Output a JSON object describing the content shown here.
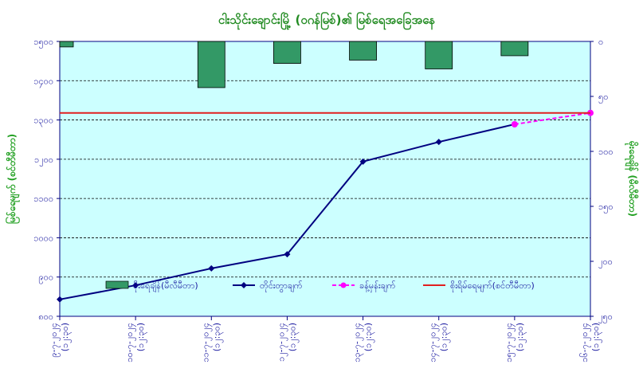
{
  "chart_data": {
    "type": "bar+line",
    "title": "ငါးသိုင်းချောင်းမြို့ (ဝဂန်မြစ်)၏ မြစ်ရေအခြေအနေ",
    "left_axis": {
      "label": "မြစ်ရေမျက် (စင်တီမီတာ)",
      "ylim": [
        800,
        1500
      ],
      "ticks": [
        800,
        900,
        1000,
        1100,
        1200,
        1300,
        1400,
        1500
      ],
      "tick_labels": [
        "၈၀၀",
        "၉၀၀",
        "၁၀၀၀",
        "၁၁၀၀",
        "၁၂၀၀",
        "၁၃၀၀",
        "၁၄၀၀",
        "၁၅၀၀"
      ]
    },
    "right_axis": {
      "label": "မိုးရေချိန် (မီလီမီတာ)",
      "ylim": [
        0,
        250
      ],
      "inverted": true,
      "ticks": [
        0,
        50,
        100,
        150,
        200,
        250
      ],
      "tick_labels": [
        "၀",
        "၅၀",
        "၁၀၀",
        "၁၅၀",
        "၂၀၀",
        "၂၅၀"
      ]
    },
    "categories": [
      "၉-၇-၂၀၂၄\n(၁၂:၃၀)",
      "၁၀-၇-၂၀၂၄\n(၁၂:၃၀)",
      "၁၁-၇-၂၀၂၄\n(၁၂:၃၀)",
      "၁၂-၇-၂၀၂၄\n(၁၂:၃၀)",
      "၁၃-၇-၂၀၂၄\n(၁၂:၃၀)",
      "၁၄-၇-၂၀၂၄\n(၁၂:၃၀)",
      "၁၅-၇-၂၀၂၄\n(၁၂:၃၀)",
      "၁၆-၇-၂၀၂၄\n(၁၂:၃၀)"
    ],
    "series": [
      {
        "name": "မိုးရေချိန်(မီလီမီတာ)",
        "kind": "bar",
        "axis": "right",
        "color": "#339966",
        "values": [
          5,
          null,
          42,
          20,
          17,
          25,
          13,
          null
        ]
      },
      {
        "name": "တိုင်းတွာချက်",
        "kind": "line",
        "axis": "left",
        "color": "#000080",
        "values": [
          843,
          879,
          922,
          958,
          1194,
          1244,
          1289,
          null
        ]
      },
      {
        "name": "ခန့်မှန်းချက်",
        "kind": "dashed-line",
        "axis": "left",
        "color": "#ff00ff",
        "values": [
          null,
          null,
          null,
          null,
          null,
          null,
          1289,
          1318
        ]
      },
      {
        "name": "စိုးရိမ်ရေမျက်(စင်တီမီတာ)",
        "kind": "hline",
        "axis": "left",
        "color": "#e02020",
        "value": 1318
      }
    ],
    "grid": true,
    "legend_position": "bottom-inside",
    "colors": {
      "plot_bg": "#ccffff",
      "title": "#228B22",
      "axis_label": "#22a022",
      "tick": "#1a1aa0",
      "frame": "#000080"
    }
  }
}
